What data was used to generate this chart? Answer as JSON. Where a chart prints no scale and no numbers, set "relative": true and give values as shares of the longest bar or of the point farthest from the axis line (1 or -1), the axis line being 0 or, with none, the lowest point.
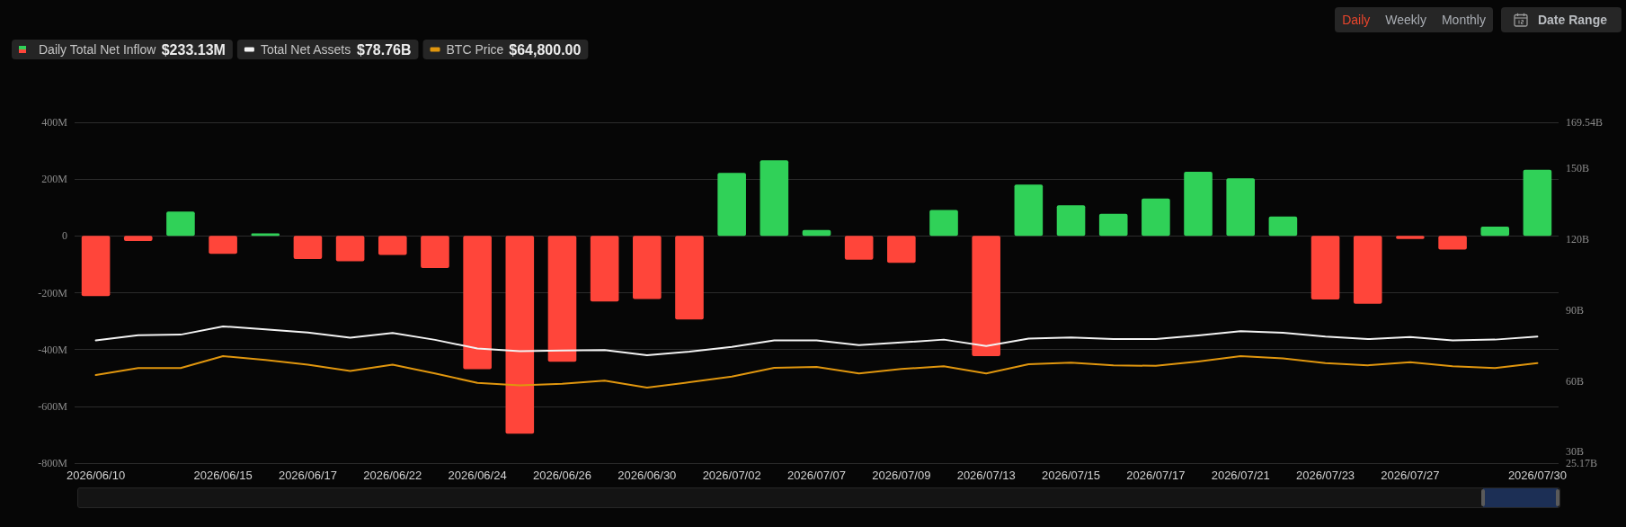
{
  "chart_data": [
    {
      "type": "bar",
      "categories": [
        "2026/06/10",
        null,
        null,
        "2026/06/15",
        null,
        "2026/06/17",
        null,
        "2026/06/22",
        null,
        "2026/06/24",
        null,
        "2026/06/26",
        null,
        "2026/06/30",
        null,
        "2026/07/02",
        null,
        "2026/07/07",
        null,
        "2026/07/09",
        null,
        "2026/07/13",
        null,
        "2026/07/15",
        null,
        "2026/07/17",
        null,
        "2026/07/21",
        null,
        "2026/07/23",
        null,
        "2026/07/27",
        null,
        null,
        "2026/07/30"
      ],
      "series": [
        {
          "name": "Daily Total Net Inflow",
          "type": "bar",
          "colors": [
            "#ff453a",
            "#ff453a",
            "#30d158",
            "#ff453a",
            "#30d158",
            "#ff453a",
            "#ff453a",
            "#ff453a",
            "#ff453a",
            "#ff453a",
            "#ff453a",
            "#ff453a",
            "#ff453a",
            "#ff453a",
            "#ff453a",
            "#30d158",
            "#30d158",
            "#30d158",
            "#ff453a",
            "#ff453a",
            "#30d158",
            "#ff453a",
            "#30d158",
            "#30d158",
            "#30d158",
            "#30d158",
            "#30d158",
            "#30d158",
            "#30d158",
            "#ff453a",
            "#ff453a",
            "#ff453a",
            "#ff453a",
            "#30d158",
            "#30d158"
          ],
          "values": [
            -212,
            -18,
            86,
            -63,
            9,
            -81,
            -89,
            -67,
            -113,
            -469,
            -696,
            -443,
            -231,
            -222,
            -294,
            222,
            266,
            21,
            -84,
            -95,
            91,
            -423,
            181,
            108,
            78,
            132,
            226,
            203,
            68,
            -224,
            -239,
            -11,
            -48,
            33,
            233.13
          ]
        },
        {
          "name": "Total Net Assets",
          "type": "line",
          "axis": "y2",
          "color": "#f2f2f2",
          "values": [
            77.2,
            79.4,
            79.6,
            83.1,
            81.8,
            80.5,
            78.3,
            80.3,
            77.4,
            73.7,
            72.6,
            72.9,
            73.1,
            70.9,
            72.4,
            74.4,
            77.2,
            77.2,
            75.2,
            76.3,
            77.5,
            74.8,
            77.9,
            78.4,
            77.7,
            77.7,
            79.3,
            81.1,
            80.4,
            78.8,
            77.7,
            78.6,
            77.2,
            77.5,
            78.76
          ]
        }
      ],
      "ylim": [
        -800,
        400
      ],
      "yticks": [
        {
          "value": -800,
          "label": "-800M"
        },
        {
          "value": -600,
          "label": "-600M"
        },
        {
          "value": -400,
          "label": "-400M"
        },
        {
          "value": -200,
          "label": "-200M"
        },
        0,
        {
          "value": 200,
          "label": "200M"
        },
        {
          "value": 400,
          "label": "400M"
        }
      ],
      "y2lim": [
        25.17,
        169.54
      ],
      "y2ticks": [
        {
          "value": 25.17,
          "label": "25.17B"
        },
        {
          "value": 30,
          "label": "30B"
        },
        {
          "value": 60,
          "label": "60B"
        },
        {
          "value": 90,
          "label": "90B"
        },
        {
          "value": 120,
          "label": "120B"
        },
        {
          "value": 150,
          "label": "150B"
        },
        {
          "value": 169.54,
          "label": "169.54B"
        }
      ],
      "grid": "y",
      "legend": "top left",
      "marker": "none",
      "annotations": [
        "$233.13M",
        "$78.76B",
        "Daily",
        "Weekly",
        "Monthly",
        "Date Range"
      ]
    },
    {
      "type": "line",
      "relative": true,
      "categories": [
        "2026/06/10",
        null,
        null,
        "2026/06/15",
        null,
        "2026/06/17",
        null,
        "2026/06/22",
        null,
        "2026/06/24",
        null,
        "2026/06/26",
        null,
        "2026/06/30",
        null,
        "2026/07/02",
        null,
        "2026/07/07",
        null,
        "2026/07/09",
        null,
        "2026/07/13",
        null,
        "2026/07/15",
        null,
        "2026/07/17",
        null,
        "2026/07/21",
        null,
        "2026/07/23",
        null,
        "2026/07/27",
        null,
        null,
        "2026/07/30"
      ],
      "series": [
        {
          "name": "BTC Price",
          "color": "#e0960e",
          "values": [
            0.4,
            0.62,
            0.62,
            1,
            0.88,
            0.73,
            0.53,
            0.73,
            0.45,
            0.15,
            0.07,
            0.12,
            0.22,
            0,
            0.17,
            0.35,
            0.63,
            0.66,
            0.45,
            0.59,
            0.68,
            0.45,
            0.74,
            0.79,
            0.71,
            0.69,
            0.83,
            1,
            0.93,
            0.78,
            0.71,
            0.81,
            0.68,
            0.62,
            0.78
          ]
        }
      ],
      "tick_labels": false,
      "legend": "top left",
      "marker": "none",
      "annotations": [
        "$64,800.00"
      ]
    }
  ]
}
